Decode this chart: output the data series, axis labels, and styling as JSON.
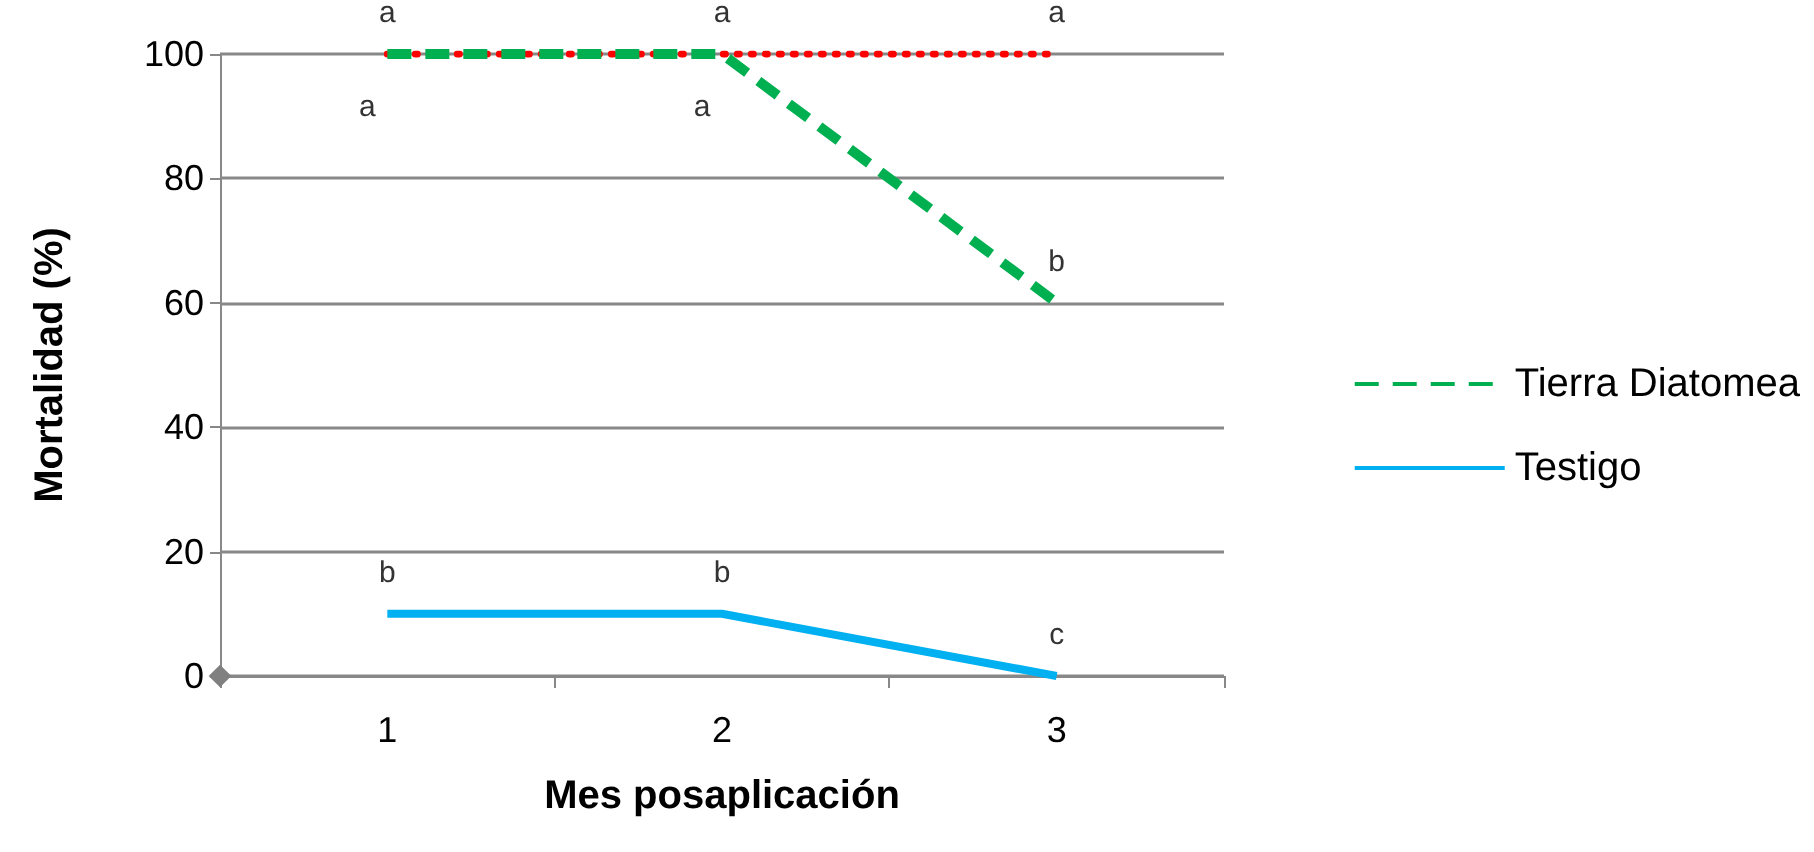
{
  "chart_data": {
    "type": "line",
    "xlabel": "Mes posaplicación",
    "ylabel": "Mortalidad (%)",
    "categories": [
      "1",
      "2",
      "3"
    ],
    "series": [
      {
        "color": "#ff0000",
        "values": [
          100,
          100,
          100
        ],
        "line_style": "dotted"
      },
      {
        "name": "Tierra Diatomea",
        "color": "#00b050",
        "values": [
          100,
          100,
          60
        ],
        "line_style": "dashed"
      },
      {
        "name": "Testigo",
        "color": "#00b0f0",
        "values": [
          10,
          10,
          0
        ],
        "line_style": "solid"
      }
    ],
    "ylim": [
      0,
      100
    ],
    "yticks": [
      0,
      20,
      40,
      60,
      80,
      100
    ],
    "grid": "y",
    "legend": "right",
    "marker": "none",
    "annotations": [
      {
        "text": "a",
        "x": "1",
        "y": 100
      },
      {
        "text": "a",
        "x": "1",
        "y": 100
      },
      {
        "text": "a",
        "x": "2",
        "y": 100
      },
      {
        "text": "a",
        "x": "2",
        "y": 100
      },
      {
        "text": "a",
        "x": "3",
        "y": 100
      },
      {
        "text": "b",
        "x": "3",
        "y": 60
      },
      {
        "text": "b",
        "x": "1",
        "y": 10
      },
      {
        "text": "b",
        "x": "2",
        "y": 10
      },
      {
        "text": "c",
        "x": "3",
        "y": 0
      }
    ]
  }
}
